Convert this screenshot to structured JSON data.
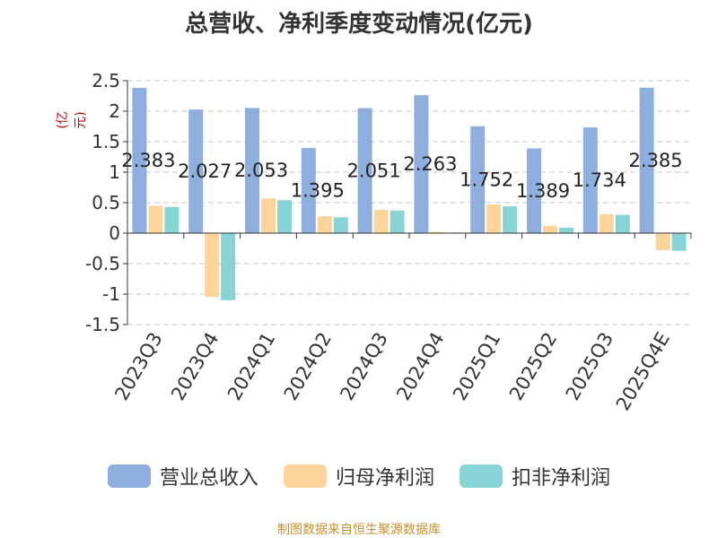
{
  "title": "总营收、净利季度变动情况(亿元)",
  "source": "制图数据来自恒生聚源数据库",
  "chart_data": {
    "type": "bar",
    "ylabel": "(亿元)",
    "ylim": [
      -1.5,
      2.5
    ],
    "yticks": [
      -1.5,
      -1,
      -0.5,
      0,
      0.5,
      1,
      1.5,
      2,
      2.5
    ],
    "ytick_labels": [
      "-1.5",
      "-1",
      "-0.5",
      "0",
      "0.5",
      "1",
      "1.5",
      "2",
      "2.5"
    ],
    "grid": true,
    "legend_position": "bottom",
    "categories": [
      "2023Q3",
      "2023Q4",
      "2024Q1",
      "2024Q2",
      "2024Q3",
      "2024Q4",
      "2025Q1",
      "2025Q2",
      "2025Q3",
      "2025Q4E"
    ],
    "series": [
      {
        "name": "营业总收入",
        "color": "#8eaede",
        "values": [
          2.383,
          2.027,
          2.053,
          1.395,
          2.051,
          2.263,
          1.752,
          1.389,
          1.734,
          2.385
        ],
        "labels": [
          "2.383",
          "2.027",
          "2.053",
          "1.395",
          "2.051",
          "2.263",
          "1.752",
          "1.389",
          "1.734",
          "2.385"
        ]
      },
      {
        "name": "归母净利润",
        "color": "#fdd49a",
        "values": [
          0.45,
          -1.05,
          0.57,
          0.28,
          0.38,
          0.02,
          0.47,
          0.12,
          0.31,
          -0.28
        ]
      },
      {
        "name": "扣非净利润",
        "color": "#88d3d6",
        "values": [
          0.43,
          -1.1,
          0.54,
          0.26,
          0.37,
          0.01,
          0.44,
          0.09,
          0.3,
          -0.29
        ]
      }
    ]
  }
}
